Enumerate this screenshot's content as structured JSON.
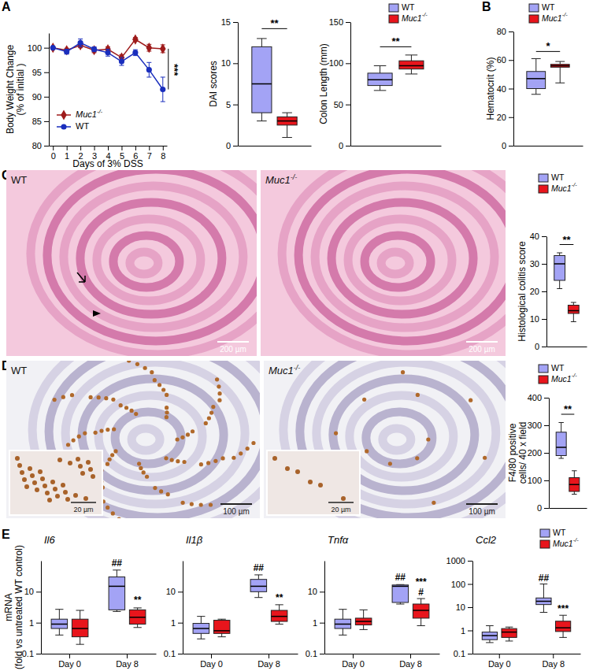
{
  "panel_labels": [
    "A",
    "B",
    "C",
    "D",
    "E"
  ],
  "micrographs": [
    {
      "label": "WT",
      "scale_bar": "200 µm"
    },
    {
      "label": "Muc1-/-",
      "scale_bar": "200 µm"
    },
    {
      "label": "WT",
      "scale_bar": "100 µm",
      "inset_scale_bar": "20 µm"
    },
    {
      "label": "Muc1-/-",
      "scale_bar": "100 µm",
      "inset_scale_bar": "20 µm"
    }
  ],
  "chart_data": [
    {
      "type": "line",
      "ylabel": [
        "Body Weight Change",
        "(% of initial )"
      ],
      "xlabel": "Days of 3% DSS",
      "x": [
        0,
        1,
        2,
        3,
        4,
        5,
        6,
        7,
        8
      ],
      "xlim": [
        -0.3,
        8.3
      ],
      "xticks": [
        0,
        1,
        2,
        3,
        4,
        5,
        6,
        7,
        8
      ],
      "ylim": [
        80,
        103
      ],
      "yticks": [
        80,
        85,
        90,
        95,
        100
      ],
      "legend": "bottom-left",
      "series": [
        {
          "name": "Muc1-/-",
          "color": "#9e1b1b",
          "marker": "diamond",
          "values": [
            100,
            99.5,
            100.5,
            99.5,
            99.7,
            98,
            101.7,
            100,
            99.8
          ],
          "errors": [
            0,
            0.4,
            0.5,
            0.5,
            0.5,
            0.6,
            0.4,
            0.7,
            0.8
          ]
        },
        {
          "name": "WT",
          "color": "#1a2ebd",
          "marker": "circle",
          "values": [
            100,
            99.2,
            101,
            99.7,
            99,
            97.2,
            99,
            95.5,
            91.5
          ],
          "errors": [
            0,
            0.5,
            0.8,
            0.5,
            0.7,
            0.8,
            0.6,
            1.5,
            2.5
          ]
        }
      ],
      "annotations": [
        {
          "text": "***",
          "x": 8,
          "y": 95.5
        }
      ]
    },
    {
      "type": "box",
      "ylabel": "DAI scores",
      "categories": [
        null
      ],
      "ylim": [
        0,
        15
      ],
      "yticks": [
        0,
        5,
        10,
        15
      ],
      "series": [
        {
          "color": "#a3a3f5",
          "min": [
            3
          ],
          "q1": [
            4
          ],
          "median": [
            7.5
          ],
          "q3": [
            12
          ],
          "max": [
            13
          ]
        },
        {
          "color": "#e8151c",
          "min": [
            1
          ],
          "q1": [
            2.5
          ],
          "median": [
            3
          ],
          "q3": [
            3.5
          ],
          "max": [
            4
          ]
        }
      ],
      "annotations": [
        {
          "text": "**",
          "y": 14.2
        }
      ]
    },
    {
      "type": "box",
      "ylabel": "Colon Length (mm)",
      "categories": [
        null
      ],
      "ylim": [
        0,
        150
      ],
      "yticks": [
        0,
        50,
        100,
        150
      ],
      "legend": "top-right",
      "series": [
        {
          "name": "WT",
          "color": "#a3a3f5",
          "min": [
            67
          ],
          "q1": [
            73
          ],
          "median": [
            80
          ],
          "q3": [
            88
          ],
          "max": [
            97
          ]
        },
        {
          "name": "Muc1-/-",
          "color": "#e8151c",
          "min": [
            87
          ],
          "q1": [
            93
          ],
          "median": [
            97
          ],
          "q3": [
            103
          ],
          "max": [
            110
          ]
        }
      ],
      "annotations": [
        {
          "text": "**",
          "y": 120
        }
      ]
    },
    {
      "type": "box",
      "ylabel": "Hematocrit (%)",
      "categories": [
        null
      ],
      "ylim": [
        0,
        80
      ],
      "yticks": [
        0,
        20,
        40,
        60,
        80
      ],
      "legend": "top-right",
      "series": [
        {
          "name": "WT",
          "color": "#a3a3f5",
          "min": [
            36
          ],
          "q1": [
            40
          ],
          "median": [
            47
          ],
          "q3": [
            52
          ],
          "max": [
            61
          ]
        },
        {
          "name": "Muc1-/-",
          "color": "#e8151c",
          "min": [
            44
          ],
          "q1": [
            55
          ],
          "median": [
            56
          ],
          "q3": [
            57
          ],
          "max": [
            59
          ]
        }
      ],
      "annotations": [
        {
          "text": "*",
          "y": 66
        }
      ]
    },
    {
      "type": "box",
      "ylabel": "Histological colitis score",
      "categories": [
        null
      ],
      "ylim": [
        0,
        40
      ],
      "yticks": [
        0,
        10,
        20,
        30,
        40
      ],
      "legend": "top-right",
      "series": [
        {
          "name": "WT",
          "color": "#a3a3f5",
          "min": [
            21
          ],
          "q1": [
            24
          ],
          "median": [
            30
          ],
          "q3": [
            33
          ],
          "max": [
            34
          ]
        },
        {
          "name": "Muc1-/-",
          "color": "#e8151c",
          "min": [
            9
          ],
          "q1": [
            12
          ],
          "median": [
            13
          ],
          "q3": [
            15
          ],
          "max": [
            16
          ]
        }
      ],
      "annotations": [
        {
          "text": "**",
          "y": 37
        }
      ]
    },
    {
      "type": "box",
      "ylabel": [
        "F4/80 positive",
        "cells/ 40 x field"
      ],
      "categories": [
        null
      ],
      "ylim": [
        0,
        400
      ],
      "yticks": [
        0,
        100,
        200,
        300,
        400
      ],
      "legend": "top-right",
      "series": [
        {
          "name": "WT",
          "color": "#a3a3f5",
          "min": [
            180
          ],
          "q1": [
            190
          ],
          "median": [
            220
          ],
          "q3": [
            275
          ],
          "max": [
            310
          ]
        },
        {
          "name": "Muc1-/-",
          "color": "#e8151c",
          "min": [
            50
          ],
          "q1": [
            60
          ],
          "median": [
            85
          ],
          "q3": [
            110
          ],
          "max": [
            135
          ]
        }
      ],
      "annotations": [
        {
          "text": "**",
          "y": 340
        }
      ]
    },
    {
      "type": "box",
      "title": "Il6",
      "ylabel": [
        "mRNA",
        "(fold vs untreated WT control)"
      ],
      "log": "y",
      "categories": [
        "Day 0",
        "Day 8"
      ],
      "ylim": [
        0.1,
        100
      ],
      "yticks": [
        0.1,
        1,
        10
      ],
      "series": [
        {
          "color": "#a3a3f5",
          "min": [
            0.4,
            2.3
          ],
          "q1": [
            0.65,
            2.6
          ],
          "median": [
            0.9,
            15
          ],
          "q3": [
            1.3,
            30
          ],
          "max": [
            2.7,
            50
          ]
        },
        {
          "color": "#e8151c",
          "min": [
            0.2,
            0.7
          ],
          "q1": [
            0.35,
            0.9
          ],
          "median": [
            0.65,
            1.5
          ],
          "q3": [
            1.3,
            2.6
          ],
          "max": [
            2.5,
            3.0
          ]
        }
      ],
      "annotations": [
        {
          "text": "##",
          "category": 1,
          "series": 0,
          "y": 65
        },
        {
          "text": "**",
          "category": 1,
          "series": 1,
          "y": 4.2
        }
      ]
    },
    {
      "type": "box",
      "title": "Il1β",
      "log": "y",
      "categories": [
        "Day 0",
        "Day 8"
      ],
      "ylim": [
        0.1,
        100
      ],
      "yticks": [
        0.1,
        1,
        10
      ],
      "series": [
        {
          "color": "#a3a3f5",
          "min": [
            0.3,
            6.5
          ],
          "q1": [
            0.45,
            10
          ],
          "median": [
            0.65,
            15
          ],
          "q3": [
            0.95,
            25
          ],
          "max": [
            1.6,
            35
          ]
        },
        {
          "color": "#e8151c",
          "min": [
            0.35,
            0.9
          ],
          "q1": [
            0.45,
            1.1
          ],
          "median": [
            0.55,
            1.6
          ],
          "q3": [
            1.2,
            2.5
          ],
          "max": [
            1.3,
            3.8
          ]
        }
      ],
      "annotations": [
        {
          "text": "##",
          "category": 1,
          "series": 0,
          "y": 46
        },
        {
          "text": "**",
          "category": 1,
          "series": 1,
          "y": 5.2
        }
      ]
    },
    {
      "type": "box",
      "title": "Tnfα",
      "log": "y",
      "categories": [
        "Day 0",
        "Day 8"
      ],
      "ylim": [
        0.1,
        100
      ],
      "yticks": [
        0.1,
        1,
        10
      ],
      "series": [
        {
          "color": "#a3a3f5",
          "min": [
            0.4,
            4
          ],
          "q1": [
            0.65,
            4.5
          ],
          "median": [
            0.9,
            15
          ],
          "q3": [
            1.3,
            16.5
          ],
          "max": [
            2.7,
            17
          ]
        },
        {
          "color": "#e8151c",
          "min": [
            0.6,
            0.8
          ],
          "q1": [
            0.85,
            1.4
          ],
          "median": [
            1.1,
            2.5
          ],
          "q3": [
            1.4,
            4
          ],
          "max": [
            2.6,
            6
          ]
        }
      ],
      "annotations": [
        {
          "text": "##",
          "category": 1,
          "series": 0,
          "y": 23
        },
        {
          "text": "***",
          "category": 1,
          "series": 1,
          "y": 16
        },
        {
          "text": "#",
          "category": 1,
          "series": 1,
          "y": 7.8
        }
      ]
    },
    {
      "type": "box",
      "title": "Ccl2",
      "log": "y",
      "categories": [
        "Day 0",
        "Day 8"
      ],
      "ylim": [
        0.1,
        1000
      ],
      "yticks": [
        0.1,
        1,
        10,
        100,
        1000
      ],
      "legend": "top-right",
      "series": [
        {
          "name": "WT",
          "color": "#a3a3f5",
          "min": [
            0.3,
            6
          ],
          "q1": [
            0.4,
            13
          ],
          "median": [
            0.6,
            18
          ],
          "q3": [
            0.85,
            25
          ],
          "max": [
            1.6,
            100
          ]
        },
        {
          "name": "Muc1-/-",
          "color": "#e8151c",
          "min": [
            0.35,
            0.5
          ],
          "q1": [
            0.5,
            0.9
          ],
          "median": [
            0.85,
            1.3
          ],
          "q3": [
            1.2,
            2.5
          ],
          "max": [
            1.4,
            4.5
          ]
        }
      ],
      "annotations": [
        {
          "text": "##",
          "category": 1,
          "series": 0,
          "y": 135
        },
        {
          "text": "***",
          "category": 1,
          "series": 1,
          "y": 6.5
        }
      ]
    }
  ]
}
